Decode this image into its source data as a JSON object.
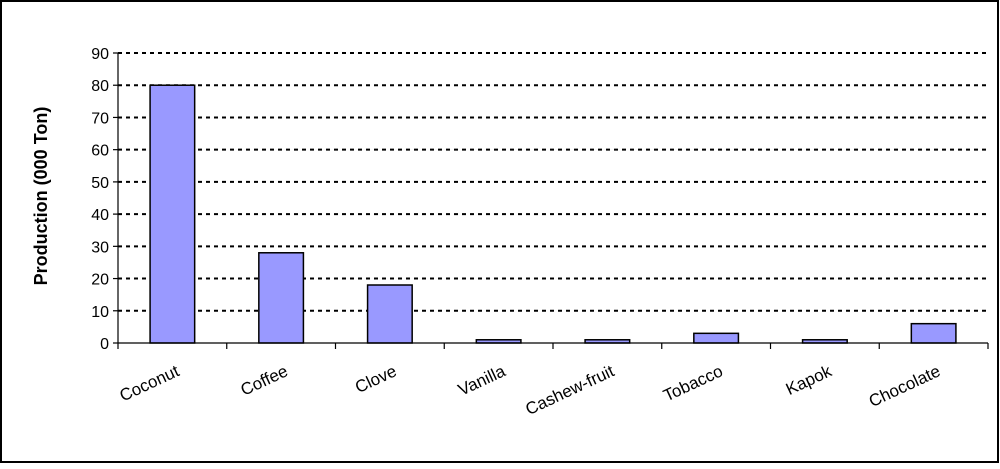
{
  "chart_data": {
    "type": "bar",
    "title": "",
    "xlabel": "",
    "ylabel": "Production (000 Ton)",
    "categories": [
      "Coconut",
      "Coffee",
      "Clove",
      "Vanilla",
      "Cashew-fruit",
      "Tobacco",
      "Kapok",
      "Chocolate"
    ],
    "values": [
      80,
      28,
      18,
      1,
      1,
      3,
      1,
      6
    ],
    "ylim": [
      0,
      90
    ],
    "yticks": [
      0,
      10,
      20,
      30,
      40,
      50,
      60,
      70,
      80,
      90
    ],
    "grid": true,
    "legend": "none",
    "colors": {
      "bar_fill": "#9999FF",
      "bar_stroke": "#000000",
      "grid": "#000000",
      "axis": "#000000",
      "background": "#FFFFFF"
    }
  }
}
